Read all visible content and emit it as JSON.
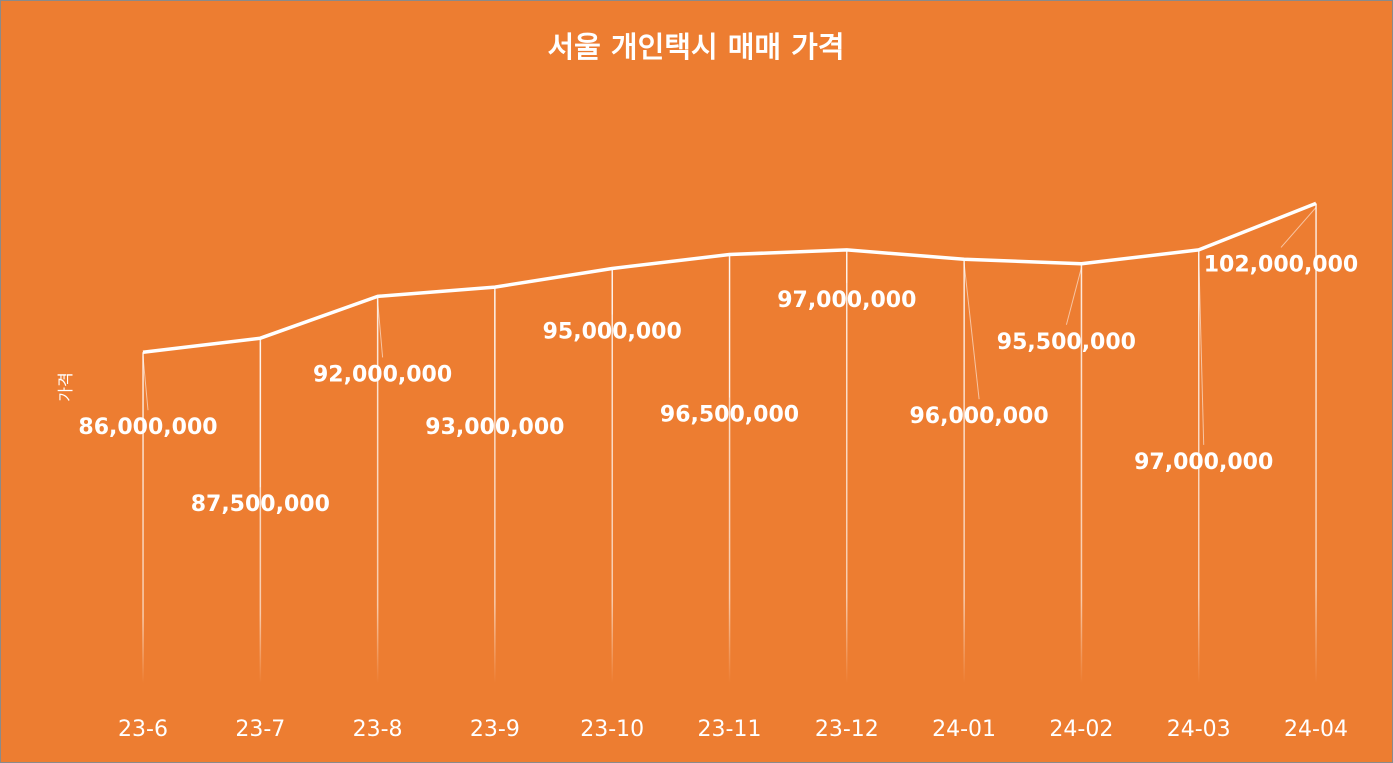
{
  "colors": {
    "background": "#ED7D31",
    "line": "#ffffff",
    "text": "#ffffff"
  },
  "chart_data": {
    "type": "line",
    "title": "서울 개인택시 매매 가격",
    "xlabel": "",
    "ylabel": "가격",
    "categories": [
      "23-6",
      "23-7",
      "23-8",
      "23-9",
      "23-10",
      "23-11",
      "23-12",
      "24-01",
      "24-02",
      "24-03",
      "24-04"
    ],
    "series": [
      {
        "values": [
          86000000,
          87500000,
          92000000,
          93000000,
          95000000,
          96500000,
          97000000,
          96000000,
          95500000,
          97000000,
          102000000
        ]
      }
    ],
    "data_labels": [
      "86,000,000",
      "87,500,000",
      "92,000,000",
      "93,000,000",
      "95,000,000",
      "96,500,000",
      "97,000,000",
      "96,000,000",
      "95,500,000",
      "97,000,000",
      "102,000,000"
    ],
    "ylim": [
      0,
      120000000
    ],
    "grid": false,
    "legend": "none",
    "leader_lines": true
  }
}
